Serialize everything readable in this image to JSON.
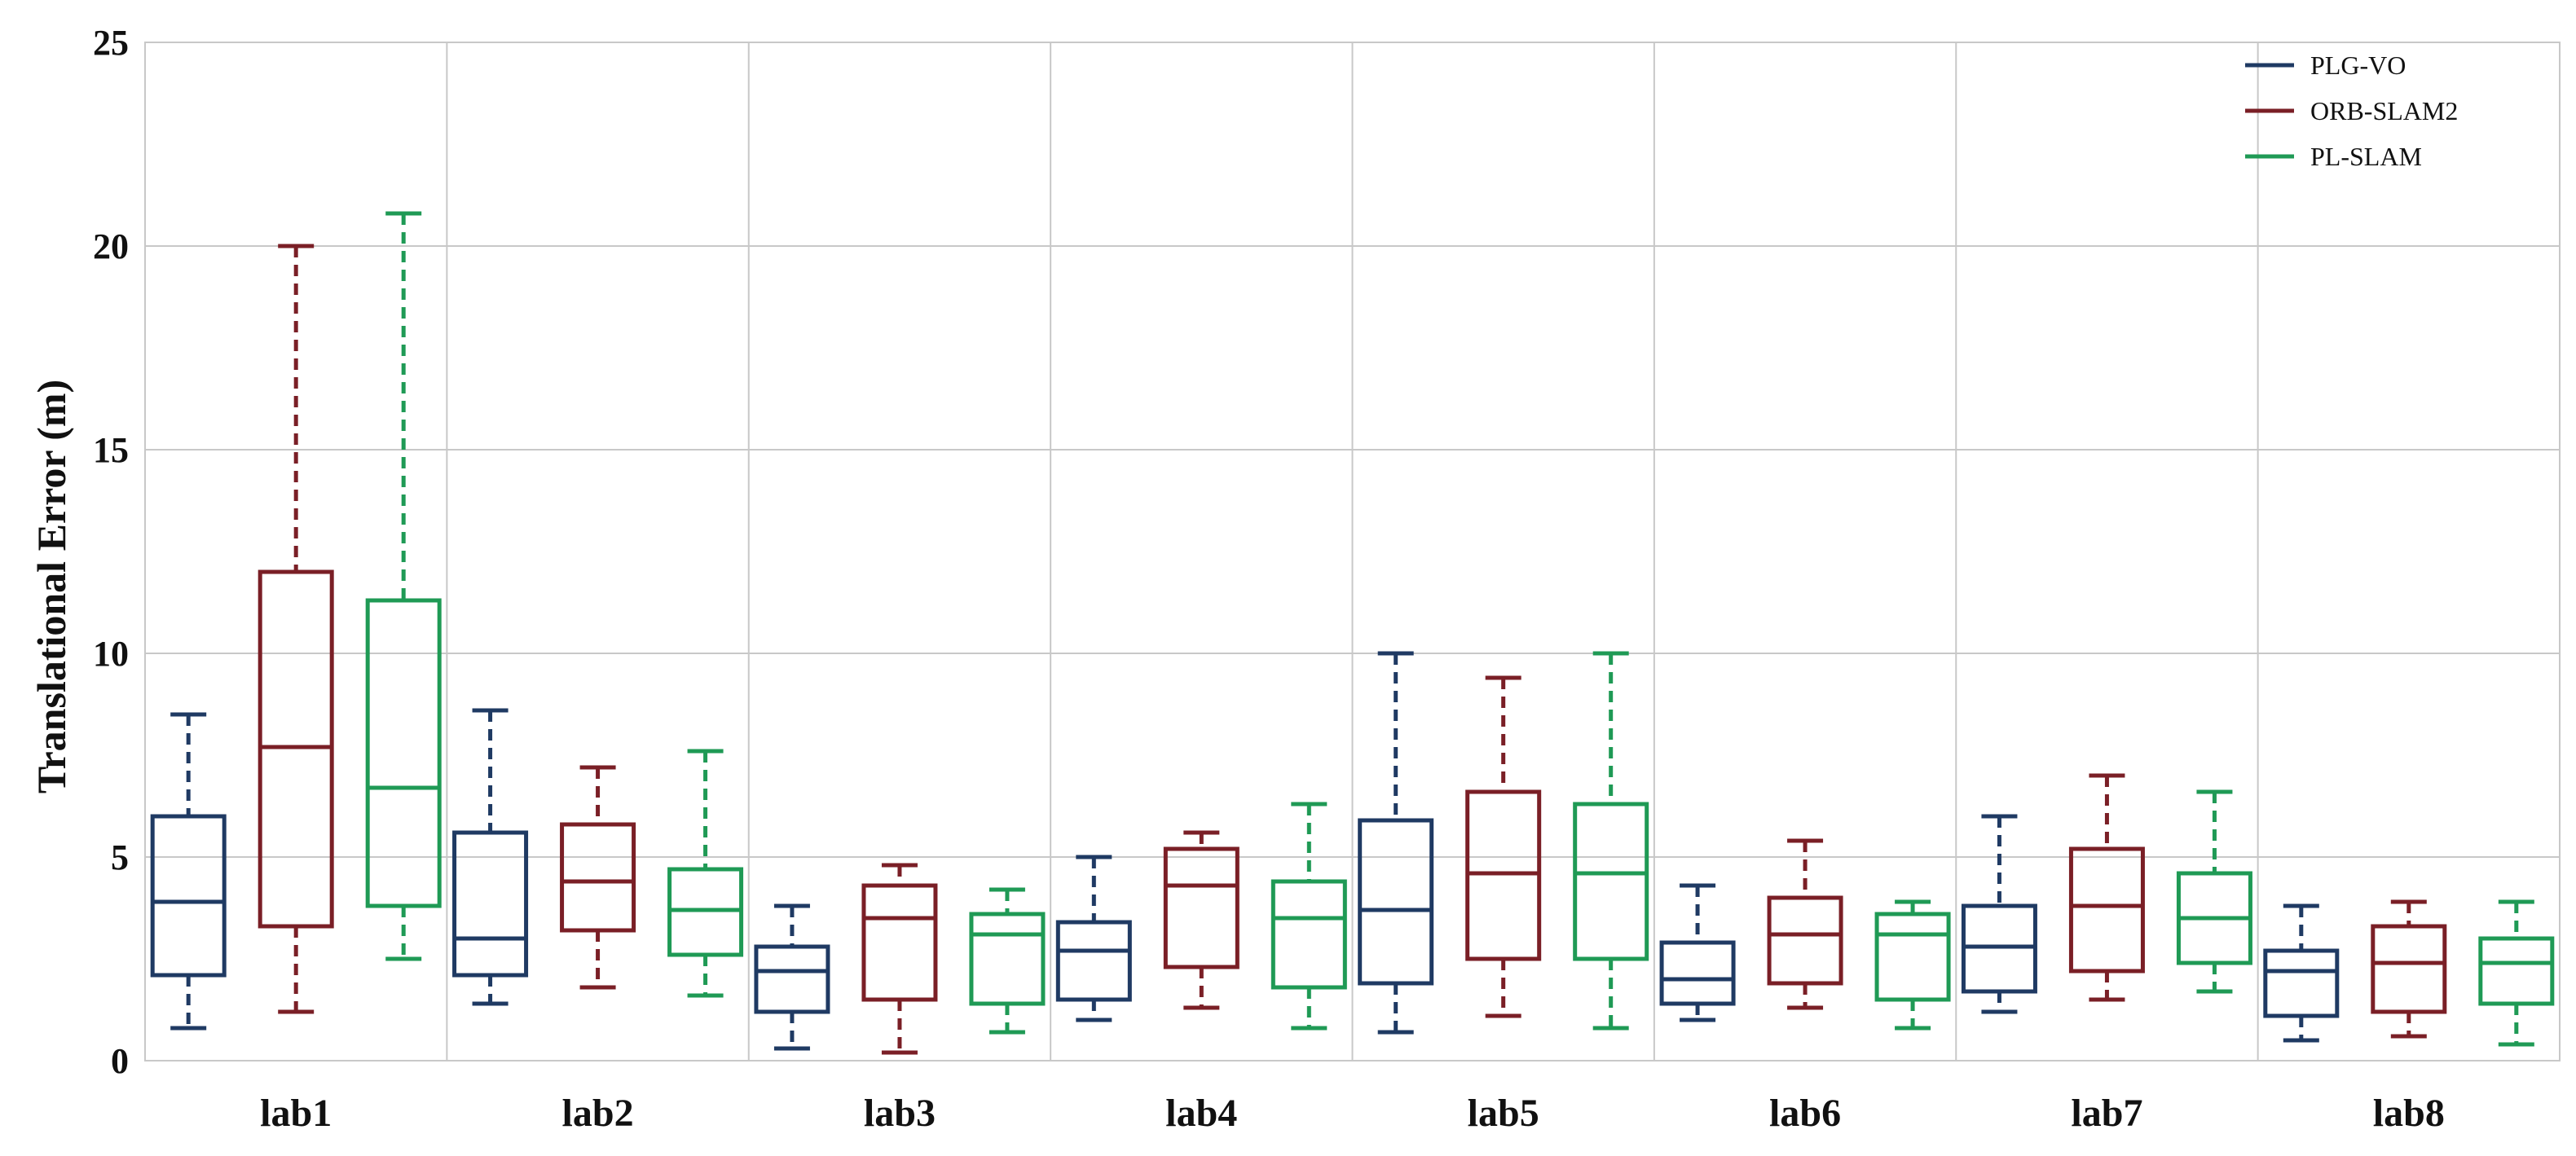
{
  "chart_data": {
    "type": "boxplot",
    "ylabel": "Translational Error (m)",
    "xlabel": "",
    "ylim": [
      0,
      25
    ],
    "yticks": [
      "0",
      "5",
      "10",
      "15",
      "20",
      "25"
    ],
    "categories": [
      "lab1",
      "lab2",
      "lab3",
      "lab4",
      "lab5",
      "lab6",
      "lab7",
      "lab8"
    ],
    "grid": true,
    "legend_position": "top-right",
    "series": [
      {
        "name": "PLG-VO",
        "color": "#1f3a63",
        "boxes": [
          {
            "min": 0.8,
            "q1": 2.1,
            "median": 3.9,
            "q3": 6.0,
            "max": 8.5
          },
          {
            "min": 1.4,
            "q1": 2.1,
            "median": 3.0,
            "q3": 5.6,
            "max": 8.6
          },
          {
            "min": 0.3,
            "q1": 1.2,
            "median": 2.2,
            "q3": 2.8,
            "max": 3.8
          },
          {
            "min": 1.0,
            "q1": 1.5,
            "median": 2.7,
            "q3": 3.4,
            "max": 5.0
          },
          {
            "min": 0.7,
            "q1": 1.9,
            "median": 3.7,
            "q3": 5.9,
            "max": 10.0
          },
          {
            "min": 1.0,
            "q1": 1.4,
            "median": 2.0,
            "q3": 2.9,
            "max": 4.3
          },
          {
            "min": 1.2,
            "q1": 1.7,
            "median": 2.8,
            "q3": 3.8,
            "max": 6.0
          },
          {
            "min": 0.5,
            "q1": 1.1,
            "median": 2.2,
            "q3": 2.7,
            "max": 3.8
          }
        ]
      },
      {
        "name": "ORB-SLAM2",
        "color": "#7a1f26",
        "boxes": [
          {
            "min": 1.2,
            "q1": 3.3,
            "median": 7.7,
            "q3": 12.0,
            "max": 20.0
          },
          {
            "min": 1.8,
            "q1": 3.2,
            "median": 4.4,
            "q3": 5.8,
            "max": 7.2
          },
          {
            "min": 0.2,
            "q1": 1.5,
            "median": 3.5,
            "q3": 4.3,
            "max": 4.8
          },
          {
            "min": 1.3,
            "q1": 2.3,
            "median": 4.3,
            "q3": 5.2,
            "max": 5.6
          },
          {
            "min": 1.1,
            "q1": 2.5,
            "median": 4.6,
            "q3": 6.6,
            "max": 9.4
          },
          {
            "min": 1.3,
            "q1": 1.9,
            "median": 3.1,
            "q3": 4.0,
            "max": 5.4
          },
          {
            "min": 1.5,
            "q1": 2.2,
            "median": 3.8,
            "q3": 5.2,
            "max": 7.0
          },
          {
            "min": 0.6,
            "q1": 1.2,
            "median": 2.4,
            "q3": 3.3,
            "max": 3.9
          }
        ]
      },
      {
        "name": "PL-SLAM",
        "color": "#1f9a55",
        "boxes": [
          {
            "min": 2.5,
            "q1": 3.8,
            "median": 6.7,
            "q3": 11.3,
            "max": 20.8
          },
          {
            "min": 1.6,
            "q1": 2.6,
            "median": 3.7,
            "q3": 4.7,
            "max": 7.6
          },
          {
            "min": 0.7,
            "q1": 1.4,
            "median": 3.1,
            "q3": 3.6,
            "max": 4.2
          },
          {
            "min": 0.8,
            "q1": 1.8,
            "median": 3.5,
            "q3": 4.4,
            "max": 6.3
          },
          {
            "min": 0.8,
            "q1": 2.5,
            "median": 4.6,
            "q3": 6.3,
            "max": 10.0
          },
          {
            "min": 0.8,
            "q1": 1.5,
            "median": 3.1,
            "q3": 3.6,
            "max": 3.9
          },
          {
            "min": 1.7,
            "q1": 2.4,
            "median": 3.5,
            "q3": 4.6,
            "max": 6.6
          },
          {
            "min": 0.4,
            "q1": 1.4,
            "median": 2.4,
            "q3": 3.0,
            "max": 3.9
          }
        ]
      }
    ]
  }
}
